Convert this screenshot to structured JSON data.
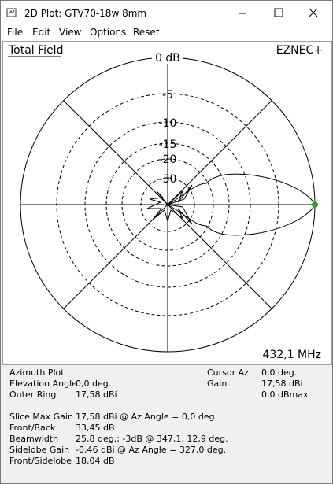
{
  "window": {
    "title": "2D Plot: GTV70-18w 8mm"
  },
  "menu": [
    "File",
    "Edit",
    "View",
    "Options",
    "Reset"
  ],
  "plot": {
    "field_label": "Total Field",
    "brand": "EZNEC+",
    "ring_labels": [
      "0 dB",
      "-5",
      "-10",
      "-15",
      "-20",
      "-30"
    ],
    "frequency": "432,1 MHz"
  },
  "info": {
    "left": [
      [
        "Azimuth Plot",
        ""
      ],
      [
        "Elevation Angle",
        "0,0 deg."
      ],
      [
        "Outer Ring",
        "17,58 dBi"
      ]
    ],
    "right": [
      [
        "Cursor Az",
        "0,0 deg."
      ],
      [
        "Gain",
        "17,58 dBi"
      ],
      [
        "",
        "0,0 dBmax"
      ]
    ],
    "bottom": [
      [
        "Slice Max Gain",
        "17,58 dBi @ Az Angle = 0,0 deg."
      ],
      [
        "Front/Back",
        "33,45 dB"
      ],
      [
        "Beamwidth",
        "25,8 deg.; -3dB @ 347,1, 12,9 deg."
      ],
      [
        "Sidelobe Gain",
        "-0,46 dBi @ Az Angle = 327,0 deg."
      ],
      [
        "Front/Sidelobe",
        "18,04 dB"
      ]
    ]
  }
}
